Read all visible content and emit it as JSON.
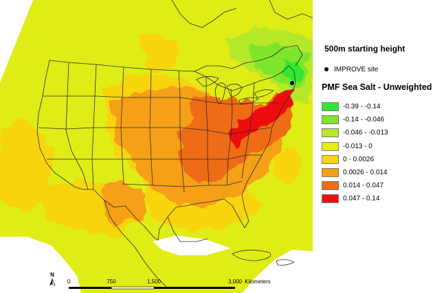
{
  "map": {
    "starting_height_label": "500m starting height",
    "site_legend_label": "IMPROVE site",
    "legend_title": "PMF Sea Salt - Unweighted",
    "classes": [
      {
        "label": "-0.39 - -0.14",
        "color": "#33e633"
      },
      {
        "label": "-0.14 - -0.046",
        "color": "#7ee62c"
      },
      {
        "label": "-0.046 - -0.013",
        "color": "#b6e82c"
      },
      {
        "label": "-0.013 - 0",
        "color": "#e2ee14"
      },
      {
        "label": "0 - 0.0026",
        "color": "#f8d40a"
      },
      {
        "label": "0.0026 - 0.014",
        "color": "#f5a018"
      },
      {
        "label": "0.014 - 0.047",
        "color": "#ef6c12"
      },
      {
        "label": "0.047 - 0.14",
        "color": "#ee1010"
      }
    ],
    "north_arrow_label": "N",
    "scale_bar": {
      "tick_labels": [
        "0",
        "750",
        "1,500",
        "3,000"
      ],
      "unit": "Kilometers"
    }
  }
}
